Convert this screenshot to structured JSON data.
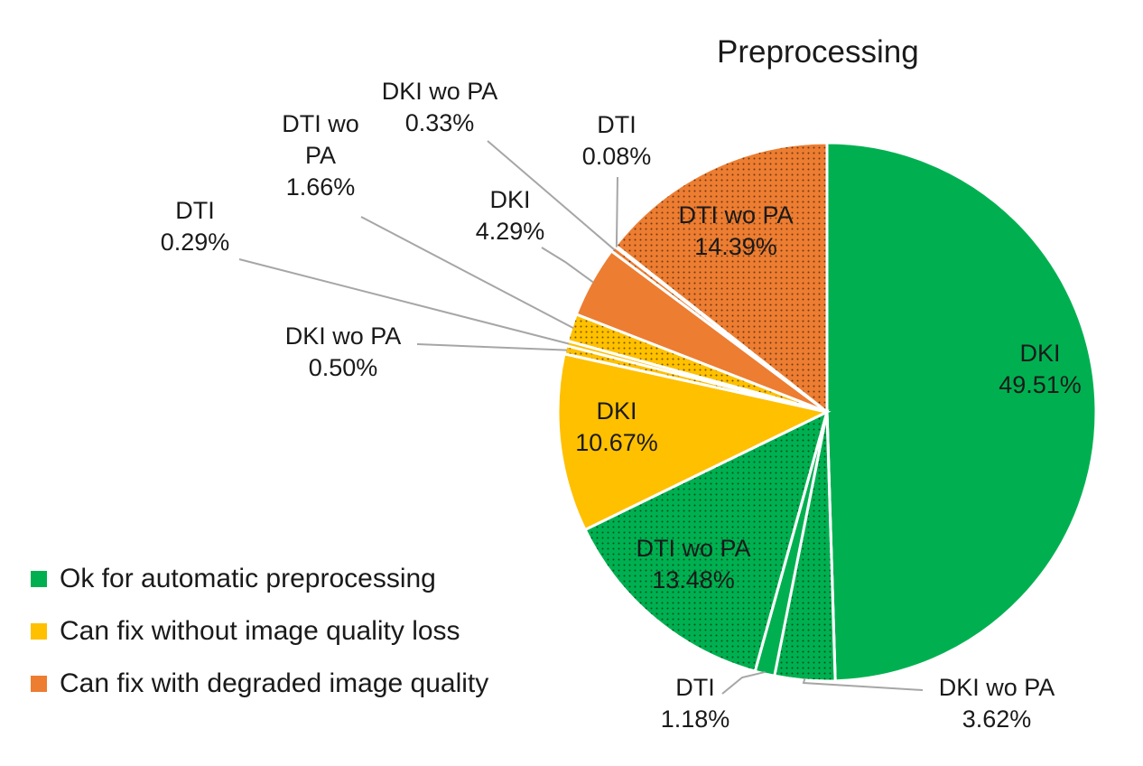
{
  "chart_data": {
    "type": "pie",
    "title": "Preprocessing",
    "start_angle_deg": 0,
    "direction": "clockwise",
    "categories": [
      "Ok for automatic preprocessing",
      "Can fix without image quality loss",
      "Can fix with degraded image quality"
    ],
    "colors": {
      "Ok for automatic preprocessing": "#00b050",
      "Can fix without image quality loss": "#ffc000",
      "Can fix with degraded image quality": "#ed7d31"
    },
    "slices": [
      {
        "category": "Ok for automatic preprocessing",
        "label": "DKI",
        "value": 49.51,
        "value_label": "49.51%",
        "pattern": false,
        "label_pos": "inside"
      },
      {
        "category": "Ok for automatic preprocessing",
        "label": "DKI wo PA",
        "value": 3.62,
        "value_label": "3.62%",
        "pattern": true,
        "label_pos": "outside"
      },
      {
        "category": "Ok for automatic preprocessing",
        "label": "DTI",
        "value": 1.18,
        "value_label": "1.18%",
        "pattern": false,
        "label_pos": "outside"
      },
      {
        "category": "Ok for automatic preprocessing",
        "label": "DTI wo PA",
        "value": 13.48,
        "value_label": "13.48%",
        "pattern": true,
        "label_pos": "inside"
      },
      {
        "category": "Can fix without image quality loss",
        "label": "DKI",
        "value": 10.67,
        "value_label": "10.67%",
        "pattern": false,
        "label_pos": "inside"
      },
      {
        "category": "Can fix without image quality loss",
        "label": "DKI wo PA",
        "value": 0.5,
        "value_label": "0.50%",
        "pattern": true,
        "label_pos": "outside"
      },
      {
        "category": "Can fix without image quality loss",
        "label": "DTI",
        "value": 0.29,
        "value_label": "0.29%",
        "pattern": false,
        "label_pos": "outside"
      },
      {
        "category": "Can fix without image quality loss",
        "label": "DTI wo PA",
        "value": 1.66,
        "value_label": "1.66%",
        "pattern": true,
        "label_pos": "outside",
        "label_lines": [
          "DTI wo",
          "PA",
          "1.66%"
        ]
      },
      {
        "category": "Can fix with degraded image quality",
        "label": "DKI",
        "value": 4.29,
        "value_label": "4.29%",
        "pattern": false,
        "label_pos": "outside"
      },
      {
        "category": "Can fix with degraded image quality",
        "label": "DKI wo PA",
        "value": 0.33,
        "value_label": "0.33%",
        "pattern": true,
        "label_pos": "outside"
      },
      {
        "category": "Can fix with degraded image quality",
        "label": "DTI",
        "value": 0.08,
        "value_label": "0.08%",
        "pattern": false,
        "label_pos": "outside"
      },
      {
        "category": "Can fix with degraded image quality",
        "label": "DTI wo PA",
        "value": 14.39,
        "value_label": "14.39%",
        "pattern": true,
        "label_pos": "inside"
      }
    ],
    "legend": {
      "placement": "bottom-left",
      "entries": [
        "Ok for automatic preprocessing",
        "Can fix without image quality loss",
        "Can fix with degraded image quality"
      ]
    }
  }
}
